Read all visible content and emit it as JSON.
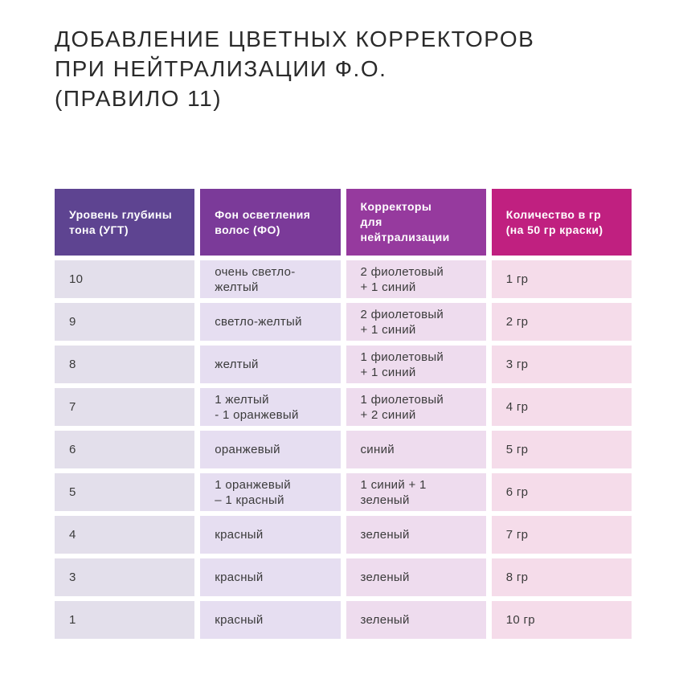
{
  "title": "ДОБАВЛЕНИЕ ЦВЕТНЫХ КОРРЕКТОРОВ\nПРИ НЕЙТРАЛИЗАЦИИ Ф.О.\n(ПРАВИЛО 11)",
  "colors": {
    "page_background": "#ffffff",
    "title_text": "#2a2a2a",
    "header_text": "#ffffff",
    "body_text": "#3b3b3b"
  },
  "table": {
    "columns": [
      {
        "label": "Уровень глубины\nтона (УГТ)",
        "header_bg": "#5e4491",
        "body_bg": "#e3dfeb"
      },
      {
        "label": "Фон осветления\nволос (ФО)",
        "header_bg": "#7b3a99",
        "body_bg": "#e6def1"
      },
      {
        "label": "Корректоры\nдля нейтрализации",
        "header_bg": "#963a9e",
        "body_bg": "#eedcee"
      },
      {
        "label": "Количество в гр\n(на 50 гр краски)",
        "header_bg": "#c02080",
        "body_bg": "#f5dcea"
      }
    ],
    "rows": [
      [
        "10",
        "очень светло-желтый",
        "2 фиолетовый\n+ 1 синий",
        "1 гр"
      ],
      [
        "9",
        "светло-желтый",
        "2 фиолетовый\n+ 1 синий",
        "2 гр"
      ],
      [
        "8",
        "желтый",
        "1 фиолетовый\n+ 1 синий",
        "3 гр"
      ],
      [
        "7",
        "1 желтый\n- 1 оранжевый",
        "1 фиолетовый\n+ 2 синий",
        "4 гр"
      ],
      [
        "6",
        "оранжевый",
        "синий",
        "5 гр"
      ],
      [
        "5",
        "1 оранжевый\n– 1 красный",
        "1 синий + 1 зеленый",
        "6 гр"
      ],
      [
        "4",
        "красный",
        "зеленый",
        "7 гр"
      ],
      [
        "3",
        "красный",
        "зеленый",
        "8 гр"
      ],
      [
        "1",
        "красный",
        "зеленый",
        "10 гр"
      ]
    ]
  }
}
